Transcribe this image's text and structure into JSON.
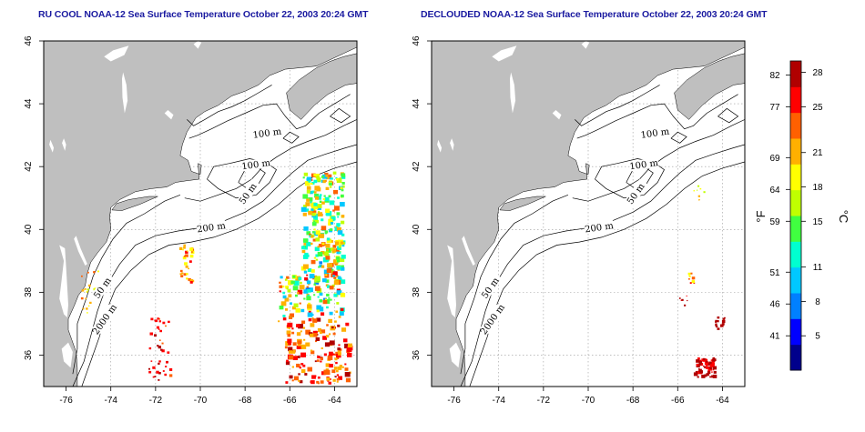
{
  "panels": [
    {
      "id": "left",
      "title": "RU COOL NOAA-12 Sea Surface Temperature October 22, 2003 20:24 GMT",
      "contour_labels": [
        "100 m",
        "100 m",
        "50 m",
        "200 m",
        "50 m",
        "2000 m"
      ],
      "has_cloudy_data": true
    },
    {
      "id": "right",
      "title": "DECLOUDED NOAA-12 Sea Surface Temperature October 22, 2003 20:24 GMT",
      "contour_labels": [
        "100 m",
        "100 m",
        "50 m",
        "200 m",
        "50 m",
        "2000 m"
      ],
      "has_cloudy_data": false
    }
  ],
  "axes": {
    "lon_ticks": [
      "-76",
      "-74",
      "-72",
      "-70",
      "-68",
      "-66",
      "-64"
    ],
    "lat_ticks": [
      "36",
      "38",
      "40",
      "42",
      "44",
      "46"
    ],
    "lon_range": [
      -77,
      -63
    ],
    "lat_range": [
      35,
      46
    ],
    "grid": "dotted"
  },
  "colorbar": {
    "fahrenheit_ticks": [
      "82",
      "77",
      "69",
      "64",
      "59",
      "51",
      "46",
      "41"
    ],
    "celsius_ticks": [
      "28",
      "25",
      "21",
      "18",
      "15",
      "11",
      "8",
      "5"
    ],
    "f_unit": "°F",
    "c_unit": "°C",
    "colors": [
      "#00008c",
      "#0000ff",
      "#0080ff",
      "#00c8ff",
      "#00ffd0",
      "#40ff40",
      "#c0ff00",
      "#ffff00",
      "#ffb000",
      "#ff6000",
      "#ff0000",
      "#b00000"
    ]
  },
  "colors": {
    "land": "#bfbfbf",
    "ocean": "#ffffff",
    "title": "#1a1aa0"
  }
}
